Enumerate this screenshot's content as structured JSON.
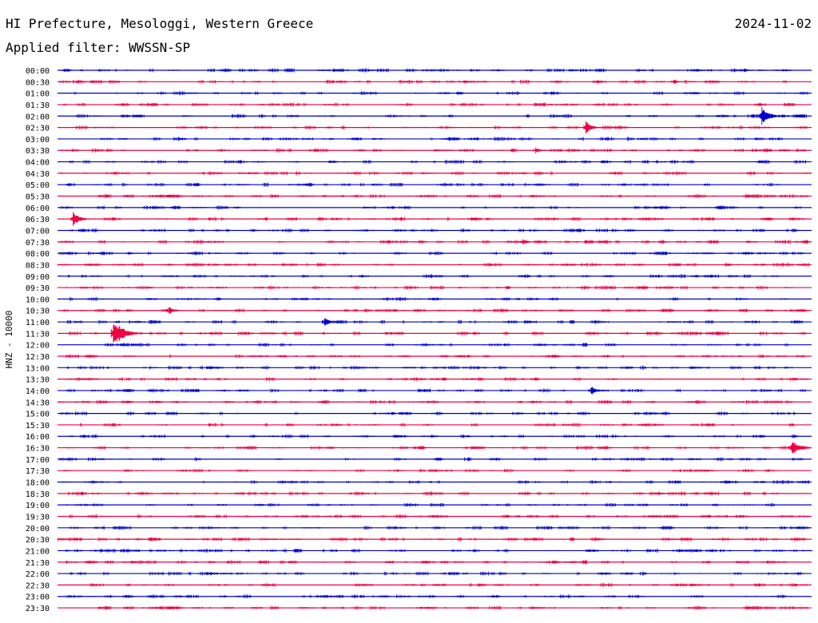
{
  "header": {
    "title": "HI Prefecture, Mesologgi, Western Greece",
    "date": "2024-11-02",
    "filter": "Applied filter: WWSSN-SP"
  },
  "chart_data": {
    "type": "line",
    "ylabel": "HNZ - 10000",
    "rows": [
      "00:00",
      "00:30",
      "01:00",
      "01:30",
      "02:00",
      "02:30",
      "03:00",
      "03:30",
      "04:00",
      "04:30",
      "05:00",
      "05:30",
      "06:00",
      "06:30",
      "07:00",
      "07:30",
      "08:00",
      "08:30",
      "09:00",
      "09:30",
      "10:00",
      "10:30",
      "11:00",
      "11:30",
      "12:00",
      "12:30",
      "13:00",
      "13:30",
      "14:00",
      "14:30",
      "15:00",
      "15:30",
      "16:00",
      "16:30",
      "17:00",
      "17:30",
      "18:00",
      "18:30",
      "19:00",
      "19:30",
      "20:00",
      "20:30",
      "21:00",
      "21:30",
      "22:00",
      "22:30",
      "23:00",
      "23:30"
    ],
    "colors": [
      "#0000cc",
      "#ee0044"
    ],
    "events": [
      {
        "row": 0,
        "minute": 27.3,
        "amplitude": 4
      },
      {
        "row": 1,
        "minute": 24.5,
        "amplitude": 4
      },
      {
        "row": 4,
        "minute": 28.0,
        "amplitude": 12
      },
      {
        "row": 5,
        "minute": 21.0,
        "amplitude": 9
      },
      {
        "row": 7,
        "minute": 19.0,
        "amplitude": 5
      },
      {
        "row": 13,
        "minute": 0.6,
        "amplitude": 10
      },
      {
        "row": 15,
        "minute": 18.5,
        "amplitude": 5
      },
      {
        "row": 21,
        "minute": 4.4,
        "amplitude": 6
      },
      {
        "row": 22,
        "minute": 10.6,
        "amplitude": 7
      },
      {
        "row": 23,
        "minute": 2.2,
        "amplitude": 18
      },
      {
        "row": 28,
        "minute": 21.2,
        "amplitude": 7
      },
      {
        "row": 33,
        "minute": 29.2,
        "amplitude": 11
      },
      {
        "row": 42,
        "minute": 1.7,
        "amplitude": 4
      }
    ]
  }
}
